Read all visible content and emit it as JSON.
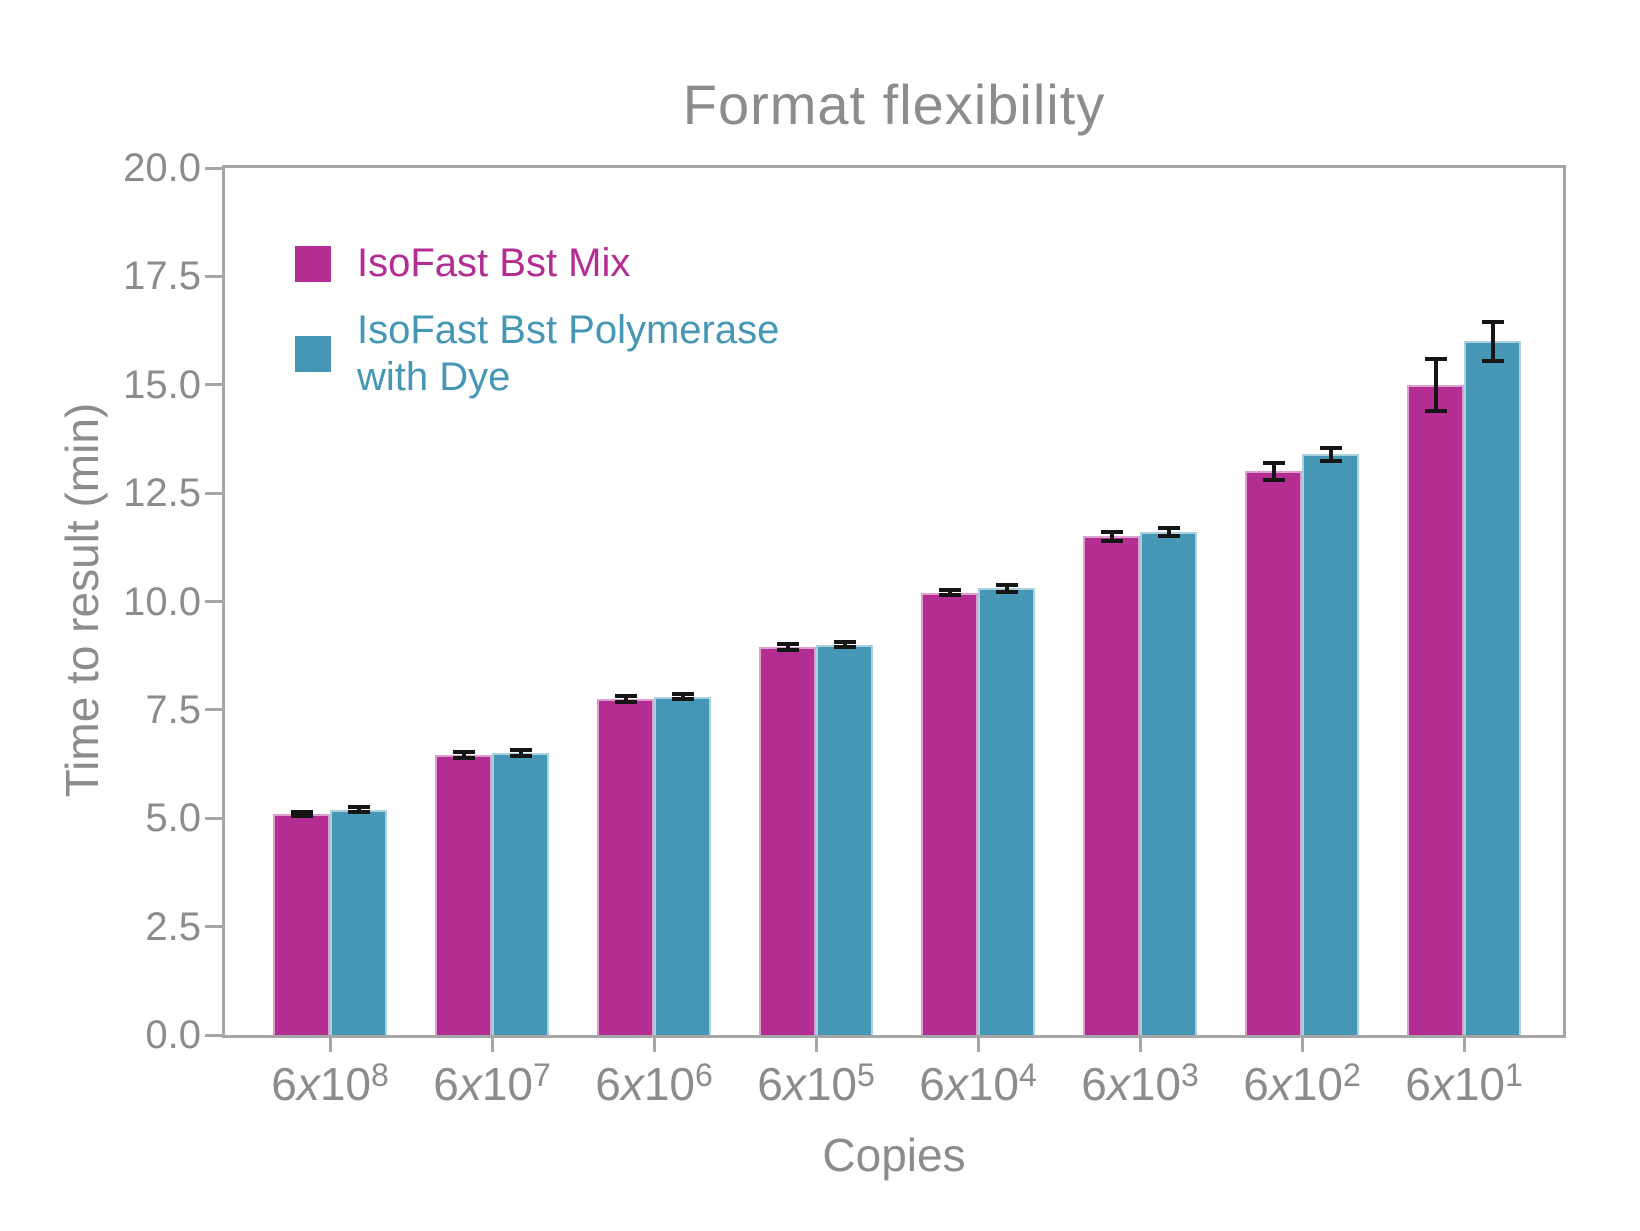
{
  "title": "Format flexibility",
  "colors": {
    "series_mix": "#b32d92",
    "series_dye": "#4697b5",
    "axis_text": "#8c8c8c",
    "spine": "#a6a6a6",
    "error_bar": "#151515",
    "background": "#ffffff"
  },
  "chart_data": {
    "type": "bar",
    "title": "Format flexibility",
    "xlabel": "Copies",
    "ylabel": "Time to result (min)",
    "ylim": [
      0.0,
      20.0
    ],
    "ytick_labels": [
      "0.0",
      "2.5",
      "5.0",
      "7.5",
      "10.0",
      "12.5",
      "15.0",
      "17.5",
      "20.0"
    ],
    "categories": [
      "6x10^8",
      "6x10^7",
      "6x10^6",
      "6x10^5",
      "6x10^4",
      "6x10^3",
      "6x10^2",
      "6x10^1"
    ],
    "series": [
      {
        "name": "IsoFast Bst Mix",
        "color": "#b32d92",
        "values": [
          5.1,
          6.45,
          7.75,
          8.95,
          10.2,
          11.5,
          13.0,
          15.0
        ],
        "errors": [
          0.05,
          0.07,
          0.06,
          0.06,
          0.06,
          0.1,
          0.2,
          0.6
        ]
      },
      {
        "name": "IsoFast Bst Polymerase with Dye",
        "color": "#4697b5",
        "values": [
          5.2,
          6.5,
          7.8,
          9.0,
          10.3,
          11.6,
          13.4,
          16.0
        ],
        "errors": [
          0.06,
          0.07,
          0.06,
          0.06,
          0.08,
          0.1,
          0.15,
          0.45
        ]
      }
    ],
    "error_bars": true,
    "grid": false,
    "legend_position": "upper left"
  },
  "legend": {
    "items": [
      {
        "lines": [
          "IsoFast Bst Mix"
        ]
      },
      {
        "lines": [
          "IsoFast Bst Polymerase",
          "with Dye"
        ]
      }
    ]
  }
}
